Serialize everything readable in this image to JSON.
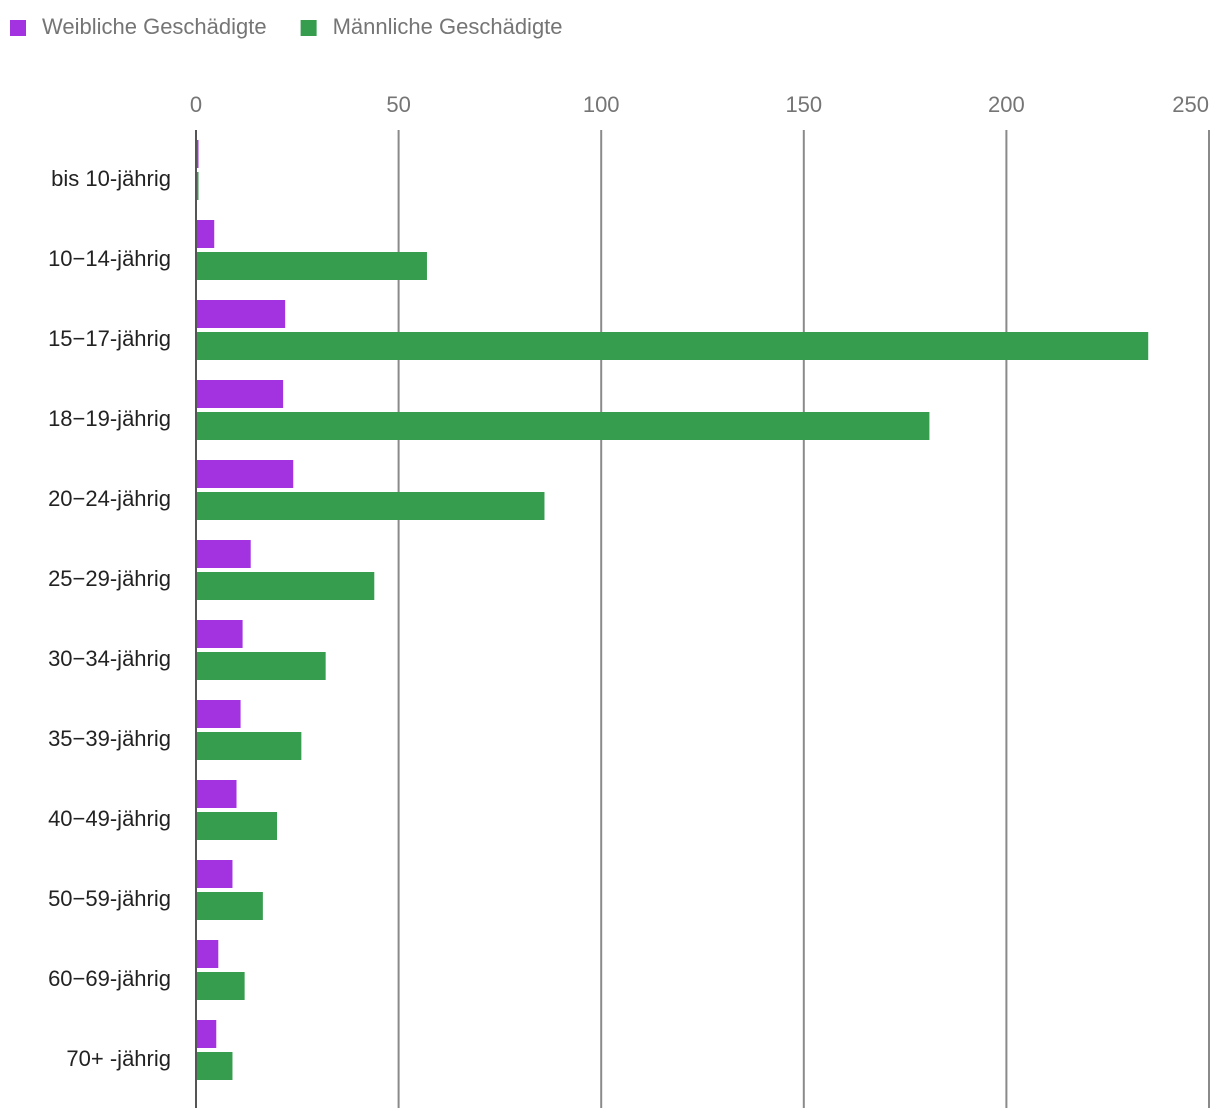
{
  "chart_data": {
    "type": "bar",
    "orientation": "horizontal",
    "title": "",
    "xlabel": "",
    "ylabel": "",
    "xlim": [
      0,
      250
    ],
    "ticks": [
      0,
      50,
      100,
      150,
      200,
      250
    ],
    "grid": true,
    "legend_position": "top-left",
    "categories": [
      "bis 10-jährig",
      "10−14-jährig",
      "15−17-jährig",
      "18−19-jährig",
      "20−24-jährig",
      "25−29-jährig",
      "30−34-jährig",
      "35−39-jährig",
      "40−49-jährig",
      "50−59-jährig",
      "60−69-jährig",
      "70+ -jährig"
    ],
    "series": [
      {
        "name": "Weibliche Geschädigte",
        "color": "#a333e0",
        "values": [
          0.5,
          4.5,
          22,
          21.5,
          24,
          13.5,
          11.5,
          11,
          10,
          9,
          5.5,
          5
        ]
      },
      {
        "name": "Männliche Geschädigte",
        "color": "#379d4e",
        "values": [
          0.5,
          57,
          235,
          181,
          86,
          44,
          32,
          26,
          20,
          16.5,
          12,
          9
        ]
      }
    ]
  }
}
